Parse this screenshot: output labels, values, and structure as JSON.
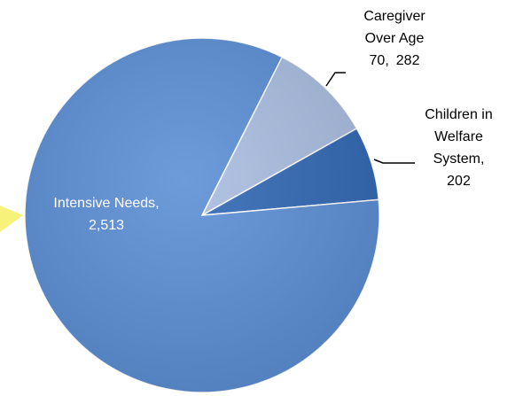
{
  "chart_data": {
    "type": "pie",
    "categories": [
      "Caregiver Over Age 70,",
      "Children in Welfare System,",
      "Intensive Needs,"
    ],
    "values": [
      282,
      202,
      2513
    ],
    "value_labels": [
      "282",
      "202",
      "2,513"
    ],
    "colors": [
      "#a9bde0",
      "#2f67b4",
      "#5a8ed5"
    ]
  }
}
